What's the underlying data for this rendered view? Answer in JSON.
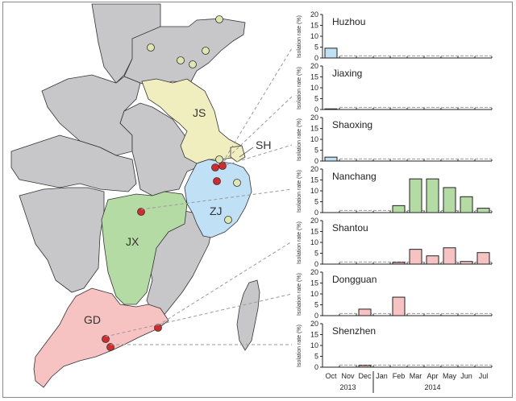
{
  "chart_data": {
    "type": "bar",
    "title": "",
    "xlabel": "",
    "ylabel": "Isolation rate (%)",
    "ylim": [
      0,
      20
    ],
    "yticks": [
      0,
      5,
      10,
      15,
      20
    ],
    "categories": [
      "Oct",
      "Nov",
      "Dec",
      "Jan",
      "Feb",
      "Mar",
      "Apr",
      "May",
      "Jun",
      "Jul"
    ],
    "year_groups": [
      {
        "label": "2013",
        "months": [
          "Oct",
          "Nov",
          "Dec"
        ]
      },
      {
        "label": "2014",
        "months": [
          "Jan",
          "Feb",
          "Mar",
          "Apr",
          "May",
          "Jun",
          "Jul"
        ]
      }
    ],
    "reference_line": {
      "style": "dashed",
      "value": 1
    },
    "series": [
      {
        "name": "Huzhou",
        "province": "ZJ",
        "color": "#bfe0f5",
        "values": [
          4.5,
          0,
          0,
          0,
          0,
          0,
          0,
          0,
          0,
          0
        ]
      },
      {
        "name": "Jiaxing",
        "province": "ZJ",
        "color": "#bfe0f5",
        "values": [
          0.3,
          0,
          0,
          0,
          0,
          0,
          0,
          0,
          0,
          0
        ]
      },
      {
        "name": "Shaoxing",
        "province": "ZJ",
        "color": "#bfe0f5",
        "values": [
          1.8,
          0,
          0,
          0,
          0,
          0,
          0,
          0,
          0,
          0
        ]
      },
      {
        "name": "Nanchang",
        "province": "JX",
        "color": "#b5dba5",
        "values": [
          0,
          0,
          0,
          0,
          3.2,
          15.5,
          15.5,
          11.5,
          7.3,
          2.0
        ]
      },
      {
        "name": "Shantou",
        "province": "GD",
        "color": "#f6c2c2",
        "values": [
          0,
          0,
          0,
          0,
          0.8,
          6.8,
          3.8,
          7.5,
          1.2,
          5.3
        ]
      },
      {
        "name": "Dongguan",
        "province": "GD",
        "color": "#f6c2c2",
        "values": [
          0,
          0,
          3.0,
          0,
          8.5,
          0,
          0,
          0,
          0,
          0
        ]
      },
      {
        "name": "Shenzhen",
        "province": "GD",
        "color": "#f6c2c2",
        "values": [
          0,
          0,
          0.8,
          0,
          0,
          0,
          0,
          0,
          0,
          0
        ]
      }
    ]
  },
  "map": {
    "provinces": [
      {
        "code": "JS",
        "color": "#f0eebf"
      },
      {
        "code": "SH",
        "color": "#f0eebf"
      },
      {
        "code": "ZJ",
        "color": "#bfe0f5"
      },
      {
        "code": "JX",
        "color": "#b5dba5"
      },
      {
        "code": "GD",
        "color": "#f6c2c2"
      }
    ],
    "other_province_color": "#c7c7ca",
    "marker_colors": {
      "positive": "#d42a2a",
      "negative": "#dfe6b0"
    }
  }
}
